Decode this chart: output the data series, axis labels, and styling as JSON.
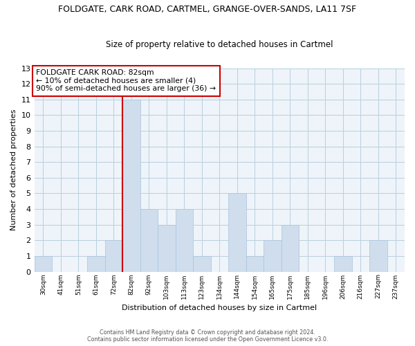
{
  "title": "FOLDGATE, CARK ROAD, CARTMEL, GRANGE-OVER-SANDS, LA11 7SF",
  "subtitle": "Size of property relative to detached houses in Cartmel",
  "xlabel": "Distribution of detached houses by size in Cartmel",
  "ylabel": "Number of detached properties",
  "bar_color": "#cfdded",
  "bar_edge_color": "#aac4dd",
  "grid_color": "#b8cfe0",
  "tick_labels": [
    "30sqm",
    "41sqm",
    "51sqm",
    "61sqm",
    "72sqm",
    "82sqm",
    "92sqm",
    "103sqm",
    "113sqm",
    "123sqm",
    "134sqm",
    "144sqm",
    "154sqm",
    "165sqm",
    "175sqm",
    "185sqm",
    "196sqm",
    "206sqm",
    "216sqm",
    "227sqm",
    "237sqm"
  ],
  "bar_heights": [
    1,
    0,
    0,
    1,
    2,
    11,
    4,
    3,
    4,
    1,
    0,
    5,
    1,
    2,
    3,
    0,
    0,
    1,
    0,
    2,
    0
  ],
  "ylim": [
    0,
    13
  ],
  "yticks": [
    0,
    1,
    2,
    3,
    4,
    5,
    6,
    7,
    8,
    9,
    10,
    11,
    12,
    13
  ],
  "vline_idx": 5,
  "vline_color": "#cc0000",
  "annotation_title": "FOLDGATE CARK ROAD: 82sqm",
  "annotation_line1": "← 10% of detached houses are smaller (4)",
  "annotation_line2": "90% of semi-detached houses are larger (36) →",
  "annotation_box_color": "#ffffff",
  "annotation_box_edge": "#cc0000",
  "footer1": "Contains HM Land Registry data © Crown copyright and database right 2024.",
  "footer2": "Contains public sector information licensed under the Open Government Licence v3.0."
}
